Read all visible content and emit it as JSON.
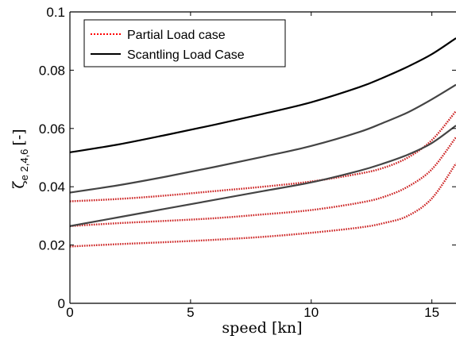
{
  "chart_data": {
    "type": "line",
    "title": "",
    "xlabel": "speed [kn]",
    "ylabel": "ζe 2,4,6 [-]",
    "ylabel_symbol": "ζ",
    "ylabel_sub": "e 2,4,6",
    "ylabel_unit": "[-]",
    "xlim": [
      0,
      16
    ],
    "ylim": [
      0,
      0.1
    ],
    "xticks": [
      0,
      5,
      10,
      15
    ],
    "xtick_labels": [
      "0",
      "5",
      "10",
      "15"
    ],
    "yticks": [
      0,
      0.02,
      0.04,
      0.06,
      0.08,
      0.1
    ],
    "ytick_labels": [
      "0",
      "0.02",
      "0.04",
      "0.06",
      "0.08",
      "0.1"
    ],
    "grid": false,
    "legend": {
      "placement": "top-left",
      "entries": [
        {
          "label": "Partial Load case",
          "color": "#ff0000",
          "style": "dotted"
        },
        {
          "label": "Scantling Load Case",
          "color": "#000000",
          "style": "solid"
        }
      ]
    },
    "x": [
      0,
      2,
      4,
      6,
      8,
      10,
      12,
      13,
      14,
      15,
      16
    ],
    "series": [
      {
        "group": "Partial Load case",
        "color": "#cc2222",
        "style": "dotted",
        "values": [
          0.0195,
          0.0203,
          0.021,
          0.0218,
          0.0228,
          0.0242,
          0.026,
          0.0275,
          0.03,
          0.036,
          0.048
        ]
      },
      {
        "group": "Partial Load case",
        "color": "#cc2222",
        "style": "dotted",
        "values": [
          0.0265,
          0.0275,
          0.0283,
          0.0292,
          0.0305,
          0.032,
          0.0345,
          0.0365,
          0.04,
          0.046,
          0.057
        ]
      },
      {
        "group": "Partial Load case",
        "color": "#cc2222",
        "style": "dotted",
        "values": [
          0.035,
          0.0358,
          0.037,
          0.0385,
          0.04,
          0.0418,
          0.0445,
          0.0465,
          0.05,
          0.056,
          0.066
        ]
      },
      {
        "group": "Scantling Load Case",
        "color": "#444444",
        "style": "solid",
        "values": [
          0.0265,
          0.0295,
          0.0325,
          0.0355,
          0.0385,
          0.0415,
          0.0455,
          0.048,
          0.051,
          0.055,
          0.061
        ]
      },
      {
        "group": "Scantling Load Case",
        "color": "#444444",
        "style": "solid",
        "values": [
          0.038,
          0.0405,
          0.0435,
          0.0468,
          0.0503,
          0.054,
          0.0588,
          0.062,
          0.0655,
          0.07,
          0.075
        ]
      },
      {
        "group": "Scantling Load Case",
        "color": "#000000",
        "style": "solid",
        "values": [
          0.0518,
          0.0545,
          0.0578,
          0.0613,
          0.065,
          0.069,
          0.0742,
          0.0775,
          0.0812,
          0.0855,
          0.091
        ]
      }
    ]
  }
}
